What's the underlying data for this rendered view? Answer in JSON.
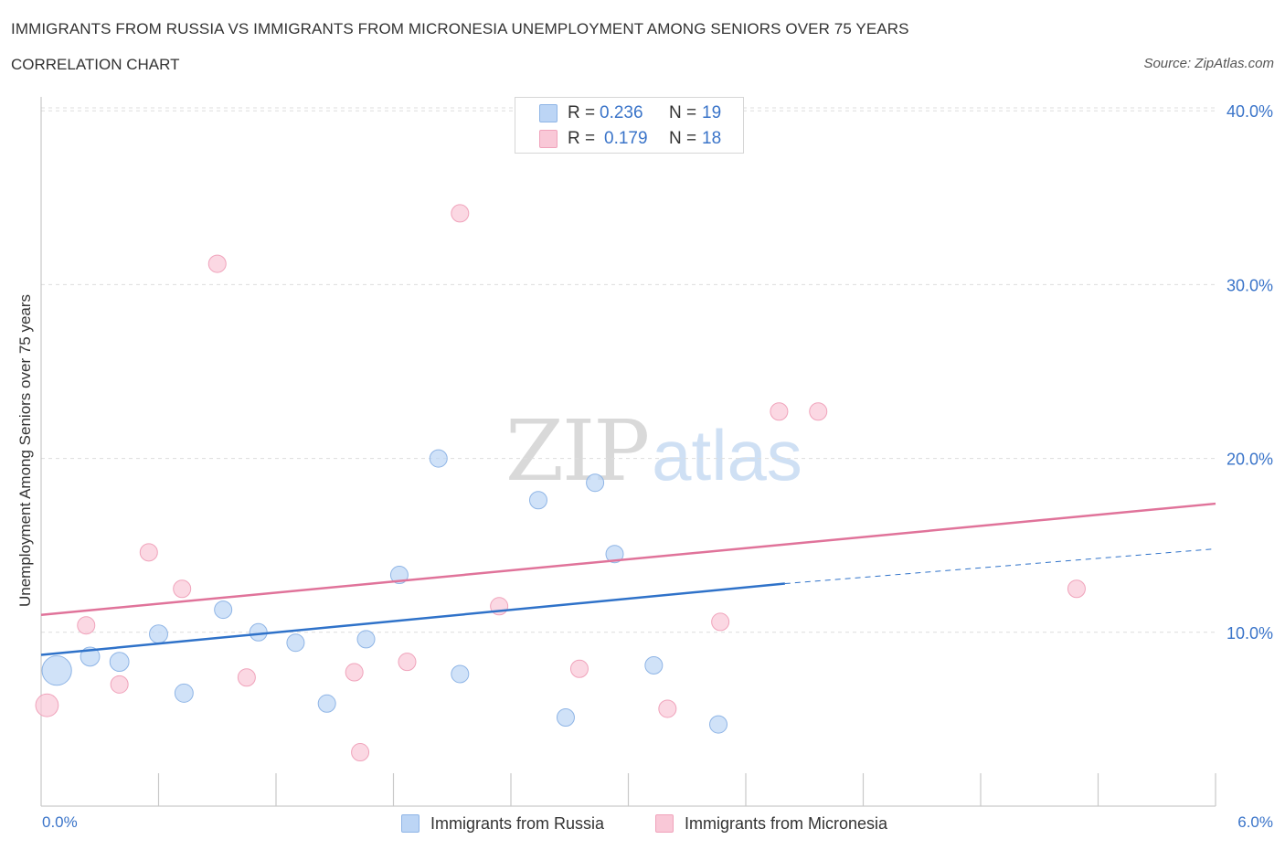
{
  "title": "IMMIGRANTS FROM RUSSIA VS IMMIGRANTS FROM MICRONESIA UNEMPLOYMENT AMONG SENIORS OVER 75 YEARS",
  "subtitle": "CORRELATION CHART",
  "source": "Source: ZipAtlas.com",
  "watermark": {
    "zip": "ZIP",
    "atlas": "atlas"
  },
  "stats": {
    "russia": {
      "r_label": "R =",
      "r_value": "0.236",
      "n_label": "N =",
      "n_value": "19"
    },
    "micronesia": {
      "r_label": "R =",
      "r_value": "0.179",
      "n_label": "N =",
      "n_value": "18"
    }
  },
  "axis": {
    "x_min_label": "0.0%",
    "x_max_label": "6.0%"
  },
  "colors": {
    "russia_fill": "#bcd5f5",
    "russia_stroke": "#8fb5e6",
    "russia_line": "#2f72c9",
    "micronesia_fill": "#f9c8d7",
    "micronesia_stroke": "#f0a3bb",
    "micronesia_line": "#e0739a",
    "axis_text": "#3a74c9",
    "grid": "#dddddd"
  },
  "chart_data": {
    "type": "scatter",
    "title": "IMMIGRANTS FROM RUSSIA VS IMMIGRANTS FROM MICRONESIA UNEMPLOYMENT AMONG SENIORS OVER 75 YEARS",
    "xlabel": "",
    "ylabel": "Unemployment Among Seniors over 75 years",
    "xlim": [
      0,
      6
    ],
    "ylim": [
      0,
      40.8
    ],
    "yticks": [
      10,
      20,
      30,
      40
    ],
    "ytick_labels": [
      "10.0%",
      "20.0%",
      "30.0%",
      "40.0%"
    ],
    "legend_position": "bottom-center",
    "grid": true,
    "series": [
      {
        "name": "Immigrants from Russia",
        "color": "#bcd5f5",
        "points": [
          {
            "x": 0.08,
            "y": 7.8,
            "size": 3
          },
          {
            "x": 0.25,
            "y": 8.6,
            "size": 1.2
          },
          {
            "x": 0.4,
            "y": 8.3,
            "size": 1.2
          },
          {
            "x": 0.6,
            "y": 9.9,
            "size": 1.1
          },
          {
            "x": 0.73,
            "y": 6.5,
            "size": 1.1
          },
          {
            "x": 0.93,
            "y": 11.3,
            "size": 1
          },
          {
            "x": 1.11,
            "y": 10.0,
            "size": 1
          },
          {
            "x": 1.3,
            "y": 9.4,
            "size": 1
          },
          {
            "x": 1.46,
            "y": 5.9,
            "size": 1
          },
          {
            "x": 1.66,
            "y": 9.6,
            "size": 1
          },
          {
            "x": 1.83,
            "y": 13.3,
            "size": 1
          },
          {
            "x": 2.03,
            "y": 20.0,
            "size": 1
          },
          {
            "x": 2.14,
            "y": 7.6,
            "size": 1
          },
          {
            "x": 2.54,
            "y": 17.6,
            "size": 1
          },
          {
            "x": 2.68,
            "y": 5.1,
            "size": 1
          },
          {
            "x": 2.83,
            "y": 18.6,
            "size": 1
          },
          {
            "x": 2.93,
            "y": 14.5,
            "size": 1
          },
          {
            "x": 3.13,
            "y": 8.1,
            "size": 1
          },
          {
            "x": 3.46,
            "y": 4.7,
            "size": 1
          }
        ],
        "trend": {
          "x": [
            0,
            3.8
          ],
          "y": [
            8.7,
            12.8
          ],
          "dashed_x": [
            3.8,
            6.0
          ],
          "dashed_y": [
            12.8,
            14.8
          ]
        }
      },
      {
        "name": "Immigrants from Micronesia",
        "color": "#f9c8d7",
        "points": [
          {
            "x": 0.03,
            "y": 5.8,
            "size": 1.7
          },
          {
            "x": 0.23,
            "y": 10.4,
            "size": 1
          },
          {
            "x": 0.4,
            "y": 7.0,
            "size": 1
          },
          {
            "x": 0.55,
            "y": 14.6,
            "size": 1
          },
          {
            "x": 0.72,
            "y": 12.5,
            "size": 1
          },
          {
            "x": 0.9,
            "y": 31.2,
            "size": 1
          },
          {
            "x": 1.05,
            "y": 7.4,
            "size": 1
          },
          {
            "x": 1.6,
            "y": 7.7,
            "size": 1
          },
          {
            "x": 1.63,
            "y": 3.1,
            "size": 1
          },
          {
            "x": 1.87,
            "y": 8.3,
            "size": 1
          },
          {
            "x": 2.14,
            "y": 34.1,
            "size": 1
          },
          {
            "x": 2.34,
            "y": 11.5,
            "size": 1
          },
          {
            "x": 2.75,
            "y": 7.9,
            "size": 1
          },
          {
            "x": 3.2,
            "y": 5.6,
            "size": 1
          },
          {
            "x": 3.47,
            "y": 10.6,
            "size": 1
          },
          {
            "x": 3.77,
            "y": 22.7,
            "size": 1
          },
          {
            "x": 3.97,
            "y": 22.7,
            "size": 1
          },
          {
            "x": 5.29,
            "y": 12.5,
            "size": 1
          }
        ],
        "trend": {
          "x": [
            0,
            6.0
          ],
          "y": [
            11.0,
            17.4
          ]
        }
      }
    ]
  }
}
